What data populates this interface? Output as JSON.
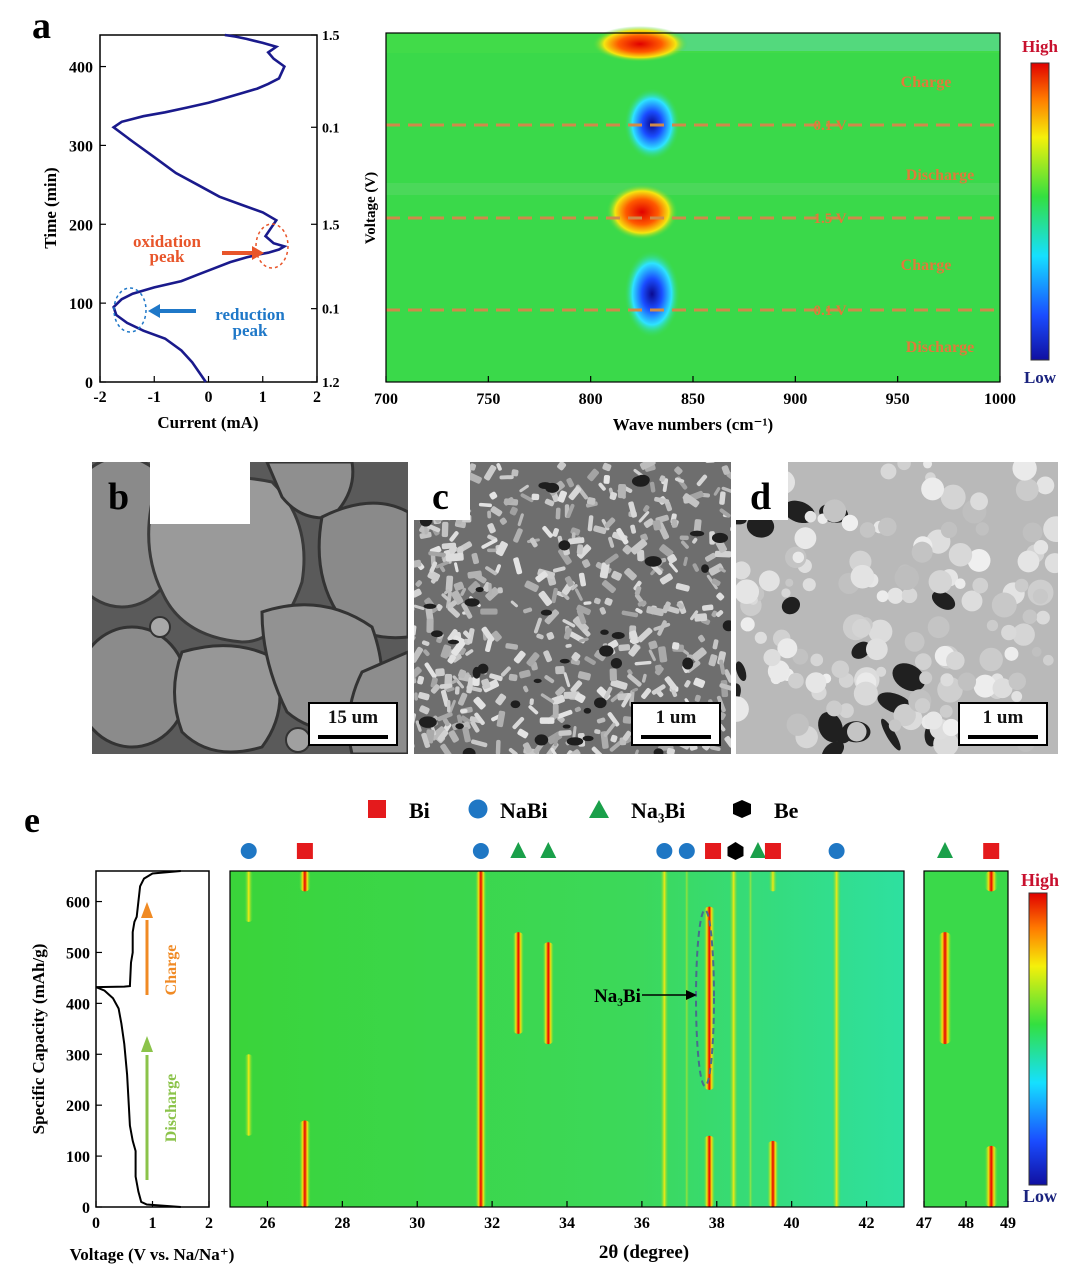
{
  "panel_labels": {
    "a": "a",
    "b": "b",
    "c": "c",
    "d": "d",
    "e": "e"
  },
  "sem": {
    "b_scale": "15 um",
    "c_scale": "1 um",
    "d_scale": "1 um"
  },
  "colors": {
    "cv_line": "#1a1a8c",
    "oxidation": "#e8552a",
    "reduction": "#1f78c8",
    "map_background": "#3ad94a",
    "guide_line": "#d08a4a",
    "region_text": "#e07a3a",
    "bi_marker": "#e41a1c",
    "nabi_marker": "#1f77c4",
    "na3bi_marker": "#1aa04a",
    "be_marker": "#000000",
    "charge_arrow": "#f08a24",
    "discharge_arrow": "#8bc34a"
  },
  "icons": {
    "bi": "red-square",
    "nabi": "blue-circle",
    "na3bi": "green-triangle",
    "be": "black-hexagon"
  },
  "chart_data": [
    {
      "id": "a_current_time",
      "type": "line",
      "xlabel": "Current (mA)",
      "ylabel": "Time (min)",
      "xlim": [
        -2,
        2
      ],
      "ylim": [
        0,
        440
      ],
      "xticks": [
        -2,
        -1,
        0,
        1,
        2
      ],
      "yticks": [
        0,
        100,
        200,
        300,
        400
      ],
      "right_axis": {
        "ticks": [
          {
            "t": 0,
            "label": "1.2"
          },
          {
            "t": 93,
            "label": "0.1"
          },
          {
            "t": 200,
            "label": "1.5"
          },
          {
            "t": 323,
            "label": "0.1"
          },
          {
            "t": 440,
            "label": "1.5"
          }
        ]
      },
      "series": [
        {
          "x": [
            -0.05,
            -0.15,
            -0.3,
            -0.5,
            -0.8,
            -1.2,
            -1.5,
            -1.7,
            -1.75,
            -1.6,
            -1.4,
            -1.0,
            -0.5,
            -0.2,
            0.1,
            0.4,
            0.7,
            0.95,
            1.1,
            1.3,
            1.4,
            1.2,
            1.05,
            1.15,
            1.25,
            1.0,
            0.6,
            0.2,
            -0.2,
            -0.6,
            -1.0,
            -1.4,
            -1.75,
            -1.6,
            -1.2,
            -0.8,
            -0.4,
            0.0,
            0.3,
            0.6,
            0.9,
            1.1,
            1.3,
            1.4,
            1.2,
            1.1,
            1.25,
            1.0,
            0.7,
            0.5,
            0.3
          ],
          "y": [
            0,
            10,
            25,
            40,
            55,
            65,
            75,
            85,
            95,
            105,
            112,
            120,
            128,
            136,
            144,
            152,
            158,
            162,
            164,
            168,
            172,
            176,
            185,
            195,
            205,
            215,
            225,
            235,
            250,
            265,
            285,
            305,
            323,
            330,
            337,
            342,
            348,
            354,
            360,
            366,
            372,
            378,
            385,
            400,
            410,
            418,
            425,
            430,
            435,
            438,
            440
          ]
        }
      ],
      "annotations": [
        {
          "text": "oxidation peak",
          "x": 0.5,
          "y": 172
        },
        {
          "text": "reduction peak",
          "x": -1.0,
          "y": 93
        }
      ]
    },
    {
      "id": "a_ir_map",
      "type": "heatmap",
      "xlabel": "Wave numbers (cm⁻¹)",
      "ylabel": "Voltage (V)",
      "xlim": [
        700,
        1000
      ],
      "xticks": [
        700,
        750,
        800,
        850,
        900,
        950,
        1000
      ],
      "hotspots": [
        {
          "x": 825,
          "y_frac": 0.97,
          "level": "high"
        },
        {
          "x": 825,
          "y_frac": 0.74,
          "level": "low"
        },
        {
          "x": 825,
          "y_frac": 0.52,
          "level": "high"
        },
        {
          "x": 828,
          "y_frac": 0.22,
          "level": "low"
        }
      ],
      "guide_lines": [
        {
          "label": "0.1 V",
          "y_frac": 0.74
        },
        {
          "label": "1.5 V",
          "y_frac": 0.52
        },
        {
          "label": "0.1 V",
          "y_frac": 0.22
        }
      ],
      "regions": [
        "Charge",
        "Discharge",
        "Charge",
        "Discharge"
      ],
      "colorbar": {
        "high": "High",
        "low": "Low"
      }
    },
    {
      "id": "e_voltage_capacity",
      "type": "line",
      "xlabel": "Voltage (V vs. Na/Na⁺)",
      "ylabel": "Specific Capacity (mAh/g)",
      "xlim": [
        0,
        2
      ],
      "ylim": [
        0,
        660
      ],
      "xticks": [
        0,
        1,
        2
      ],
      "yticks": [
        0,
        100,
        200,
        300,
        400,
        500,
        600
      ],
      "series": [
        {
          "x": [
            1.5,
            0.9,
            0.8,
            0.75,
            0.7,
            0.7,
            0.65,
            0.6,
            0.58,
            0.55,
            0.5,
            0.45,
            0.4,
            0.3,
            0.15,
            0.0
          ],
          "y": [
            0,
            5,
            10,
            30,
            60,
            110,
            130,
            160,
            200,
            260,
            320,
            360,
            390,
            410,
            425,
            432
          ]
        },
        {
          "x": [
            0.0,
            0.5,
            0.6,
            0.62,
            0.65,
            0.65,
            0.68,
            0.72,
            0.75,
            0.78,
            0.85,
            1.0,
            1.5
          ],
          "y": [
            432,
            433,
            434,
            480,
            500,
            540,
            560,
            570,
            600,
            630,
            645,
            655,
            660
          ]
        }
      ],
      "annotations": [
        {
          "text": "Charge"
        },
        {
          "text": "Discharge"
        }
      ]
    },
    {
      "id": "e_xrd_map",
      "type": "heatmap",
      "xlabel": "2θ (degree)",
      "xlim": [
        25,
        43
      ],
      "xticks": [
        26,
        28,
        30,
        32,
        34,
        36,
        38,
        40,
        42
      ],
      "inset_xlim": [
        47,
        49
      ],
      "inset_xticks": [
        47,
        48,
        49
      ],
      "legend": [
        {
          "marker": "bi",
          "label": "Bi"
        },
        {
          "marker": "nabi",
          "label": "NaBi"
        },
        {
          "marker": "na3bi",
          "label": "Na₃Bi"
        },
        {
          "marker": "be",
          "label": "Be"
        }
      ],
      "phase_markers": [
        {
          "x": 25.5,
          "phase": "nabi"
        },
        {
          "x": 27.0,
          "phase": "bi"
        },
        {
          "x": 31.7,
          "phase": "nabi"
        },
        {
          "x": 32.7,
          "phase": "na3bi"
        },
        {
          "x": 33.5,
          "phase": "na3bi"
        },
        {
          "x": 36.6,
          "phase": "nabi"
        },
        {
          "x": 37.2,
          "phase": "nabi"
        },
        {
          "x": 37.9,
          "phase": "bi"
        },
        {
          "x": 38.5,
          "phase": "be"
        },
        {
          "x": 39.1,
          "phase": "na3bi"
        },
        {
          "x": 39.5,
          "phase": "bi"
        },
        {
          "x": 41.2,
          "phase": "nabi"
        },
        {
          "x": 47.5,
          "phase": "na3bi"
        },
        {
          "x": 48.6,
          "phase": "bi"
        }
      ],
      "annotation": {
        "text": "Na₃Bi",
        "x": 37.8,
        "capacity": [
          230,
          590
        ]
      },
      "colorbar": {
        "high": "High",
        "low": "Low"
      }
    }
  ],
  "texts": {
    "current_label": "Current (mA)",
    "time_label": "Time (min)",
    "voltage_label": "Voltage (V)",
    "wave_label": "Wave numbers (cm⁻¹)",
    "oxidation": "oxidation",
    "oxidation2": "peak",
    "reduction": "reduction",
    "reduction2": "peak",
    "charge": "Charge",
    "discharge": "Discharge",
    "v01": "0.1 V",
    "v15": "1.5 V",
    "high": "High",
    "low": "Low",
    "cap_label": "Specific Capacity (mAh/g)",
    "volt_label": "Voltage (V vs. Na/Na⁺)",
    "theta_label": "2θ (degree)",
    "na3bi_annot": "Na₃Bi"
  }
}
